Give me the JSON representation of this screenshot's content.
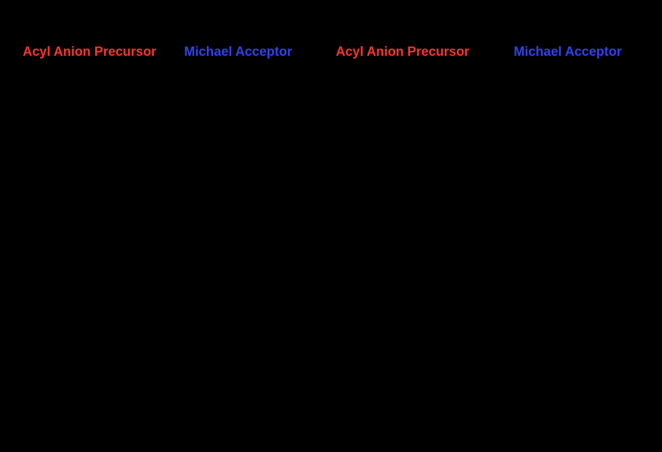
{
  "figure": {
    "background_color": "#000000",
    "label_colors": {
      "acyl_anion_precursor": "#fb352c",
      "michael_acceptor": "#3042ee"
    },
    "labels": [
      {
        "text": "Acyl Anion Precursor",
        "color": "#fb352c"
      },
      {
        "text": "Michael Acceptor",
        "color": "#3042ee"
      },
      {
        "text": "Acyl Anion Precursor",
        "color": "#fb352c"
      },
      {
        "text": "Michael Acceptor",
        "color": "#3042ee"
      }
    ]
  }
}
